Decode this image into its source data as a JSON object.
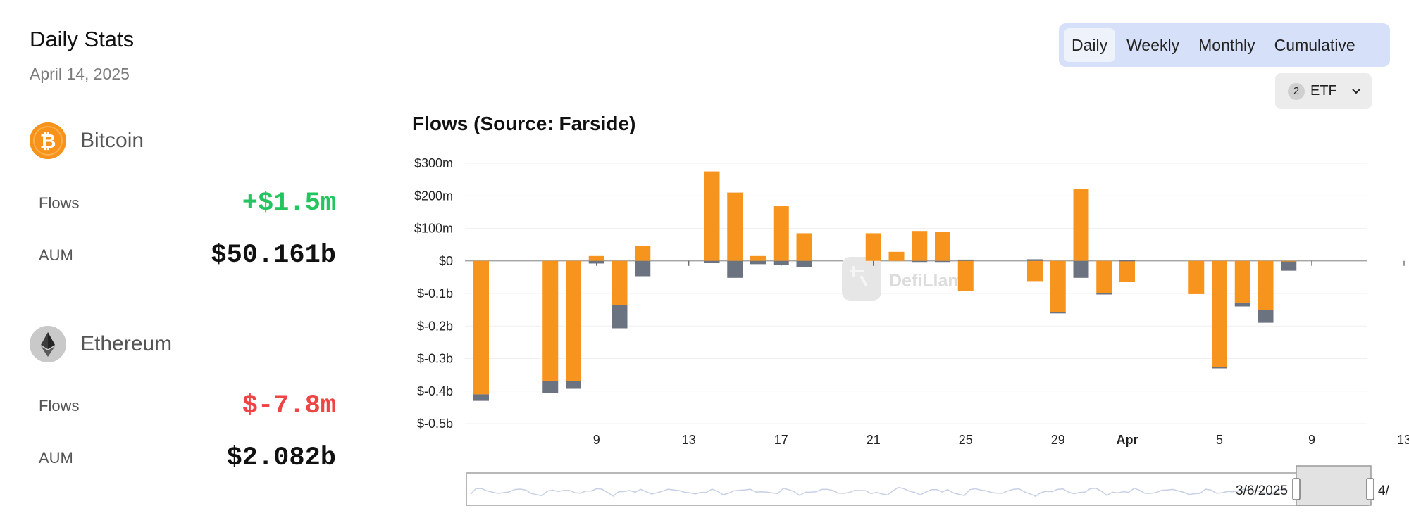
{
  "header": {
    "title": "Daily Stats",
    "date": "April 14, 2025"
  },
  "assets": [
    {
      "name": "Bitcoin",
      "icon": "bitcoin-icon",
      "color": "#f7931a",
      "flows_label": "Flows",
      "flows": "+$1.5m",
      "flows_color": "#22c55e",
      "aum_label": "AUM",
      "aum": "$50.161b"
    },
    {
      "name": "Ethereum",
      "icon": "ethereum-icon",
      "color": "#c9c9c9",
      "flows_label": "Flows",
      "flows": "$-7.8m",
      "flows_color": "#ef4444",
      "aum_label": "AUM",
      "aum": "$2.082b"
    }
  ],
  "toggle": {
    "options": [
      "Daily",
      "Weekly",
      "Monthly",
      "Cumulative"
    ],
    "selected": "Daily"
  },
  "filter": {
    "count": "2",
    "label": "ETF",
    "icon": "chevron-down-icon"
  },
  "watermark": "DefiLlama",
  "colors": {
    "btc": "#f7941d",
    "eth": "#6b7280",
    "grid": "#f0f0f0",
    "axis": "#cccccc"
  },
  "chart_data": {
    "type": "bar",
    "stacked": true,
    "title": "Flows (Source: Farside)",
    "xlabel": "",
    "ylabel": "",
    "ylim": [
      -500,
      300
    ],
    "yticks": [
      300,
      200,
      100,
      0,
      -100,
      -200,
      -300,
      -400,
      -500
    ],
    "ytick_labels": [
      "$300m",
      "$200m",
      "$100m",
      "$0",
      "$-0.1b",
      "$-0.2b",
      "$-0.3b",
      "$-0.4b",
      "$-0.5b"
    ],
    "xtick_labels": [
      {
        "day": 5,
        "label": "9"
      },
      {
        "day": 9,
        "label": "13"
      },
      {
        "day": 13,
        "label": "17"
      },
      {
        "day": 17,
        "label": "21"
      },
      {
        "day": 21,
        "label": "25"
      },
      {
        "day": 25,
        "label": "29"
      },
      {
        "day": 28,
        "label": "Apr"
      },
      {
        "day": 32,
        "label": "5"
      },
      {
        "day": 36,
        "label": "9"
      },
      {
        "day": 40,
        "label": "13"
      }
    ],
    "start_date": "2025-03-05",
    "day_offsets": [
      0,
      3,
      4,
      5,
      6,
      7,
      10,
      11,
      12,
      13,
      14,
      17,
      18,
      19,
      20,
      21,
      24,
      25,
      26,
      27,
      28,
      31,
      32,
      33,
      34,
      35,
      38,
      39,
      40,
      41
    ],
    "series": [
      {
        "name": "Bitcoin",
        "values": [
          -410,
          -370,
          -370,
          15,
          -135,
          45,
          275,
          210,
          15,
          168,
          85,
          85,
          28,
          92,
          90,
          -92,
          -62,
          -158,
          220,
          -100,
          -65,
          -102,
          -327,
          -128,
          -150,
          -2,
          0,
          0,
          0,
          1.5
        ]
      },
      {
        "name": "Ethereum",
        "values": [
          -20,
          -37,
          -23,
          -8,
          -72,
          -47,
          -5,
          -52,
          -10,
          -12,
          -18,
          0,
          0,
          -3,
          -3,
          4,
          5,
          -2,
          -52,
          -3,
          2,
          0,
          -3,
          -12,
          -40,
          -28,
          0,
          0,
          0,
          -7.8
        ]
      }
    ],
    "range_slider": {
      "start_label": "3/6/2025",
      "end_label": "4/"
    }
  }
}
